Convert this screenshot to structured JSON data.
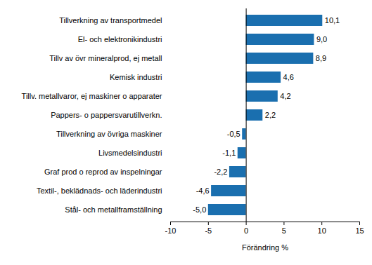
{
  "chart_data": {
    "type": "bar",
    "orientation": "horizontal",
    "x_label": "Förändring %",
    "categories": [
      "Tillverkning av transportmedel",
      "El- och elektronikindustri",
      "Tillv av övr mineralprod, ej metall",
      "Kemisk industri",
      "Tillv. metallvaror, ej maskiner o apparater",
      "Pappers- o pappersvarutillverkn.",
      "Tillverkning av övriga maskiner",
      "Livsmedelsindustri",
      "Graf prod o reprod av inspelningar",
      "Textil-, beklädnads- och läderindustri",
      "Stål- och metallframställning"
    ],
    "values": [
      10.1,
      9.0,
      8.9,
      4.6,
      4.2,
      2.2,
      -0.5,
      -1.1,
      -2.2,
      -4.6,
      -5.0
    ],
    "value_labels": [
      "10,1",
      "9,0",
      "8,9",
      "4,6",
      "4,2",
      "2,2",
      "-0,5",
      "-1,1",
      "-2,2",
      "-4,6",
      "-5,0"
    ],
    "data_labels": true,
    "color": "#1a6faf",
    "xlim": [
      -10,
      15
    ],
    "xticks": [
      -10,
      -5,
      0,
      5,
      10,
      15
    ],
    "grid": false
  }
}
